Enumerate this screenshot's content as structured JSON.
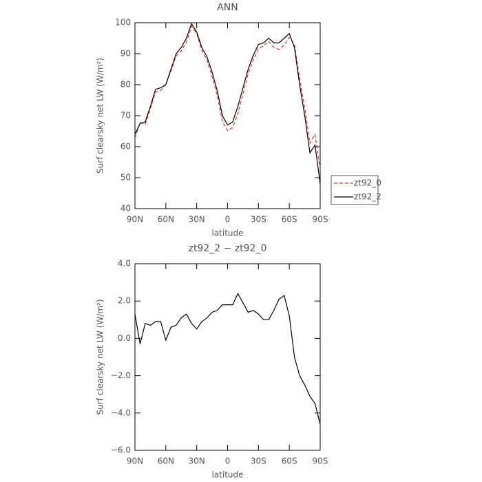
{
  "chart_data": [
    {
      "type": "line",
      "title": "ANN",
      "xlabel": "latitude",
      "ylabel": "Surf clearsky net LW (W/m²)",
      "x": [
        90,
        85,
        80,
        75,
        70,
        65,
        60,
        55,
        50,
        45,
        40,
        35,
        30,
        25,
        20,
        15,
        10,
        5,
        0,
        -5,
        -10,
        -15,
        -20,
        -25,
        -30,
        -35,
        -40,
        -45,
        -50,
        -55,
        -60,
        -65,
        -70,
        -75,
        -80,
        -85,
        -90
      ],
      "xlim": [
        90,
        -90
      ],
      "xticks": [
        {
          "value": 90,
          "label": "90N"
        },
        {
          "value": 60,
          "label": "60N"
        },
        {
          "value": 30,
          "label": "30N"
        },
        0,
        {
          "value": -30,
          "label": "30S"
        },
        {
          "value": -60,
          "label": "60S"
        },
        {
          "value": -90,
          "label": "90S"
        }
      ],
      "ylim": [
        40,
        100
      ],
      "yticks": [
        40,
        50,
        60,
        70,
        80,
        90,
        100
      ],
      "legend": "right",
      "series": [
        {
          "name": "zt92_0",
          "color": "#e8322a",
          "dashed": true,
          "values": [
            62.7,
            67.8,
            67.2,
            72.3,
            77.6,
            78.1,
            80.1,
            84.4,
            89.3,
            90.9,
            93.7,
            98.9,
            96.5,
            91.1,
            87.9,
            82.6,
            76.5,
            68.2,
            65.2,
            66.2,
            70.6,
            77.1,
            83.6,
            88,
            91.7,
            92.5,
            94,
            92,
            91.4,
            92.7,
            95.3,
            93,
            82,
            72.5,
            61.1,
            64,
            52.6
          ]
        },
        {
          "name": "zt92_2",
          "color": "#000000",
          "dashed": false,
          "values": [
            64,
            67.5,
            68,
            73,
            78.5,
            79,
            80,
            85,
            90,
            92,
            95,
            99.7,
            97,
            92,
            89,
            84,
            78,
            70,
            67,
            68,
            73,
            79,
            85,
            89.5,
            93,
            93.5,
            95,
            93.5,
            93.5,
            95,
            96.5,
            92,
            80,
            70,
            58,
            60.5,
            48
          ]
        }
      ]
    },
    {
      "type": "line",
      "title": "zt92_2 − zt92_0",
      "xlabel": "latitude",
      "ylabel": "Surf clearsky net LW (W/m²)",
      "x": [
        90,
        85,
        80,
        75,
        70,
        65,
        60,
        55,
        50,
        45,
        40,
        35,
        30,
        25,
        20,
        15,
        10,
        5,
        0,
        -5,
        -10,
        -15,
        -20,
        -25,
        -30,
        -35,
        -40,
        -45,
        -50,
        -55,
        -60,
        -65,
        -70,
        -75,
        -80,
        -85,
        -90
      ],
      "xlim": [
        90,
        -90
      ],
      "xticks": [
        {
          "value": 90,
          "label": "90N"
        },
        {
          "value": 60,
          "label": "60N"
        },
        {
          "value": 30,
          "label": "30N"
        },
        0,
        {
          "value": -30,
          "label": "30S"
        },
        {
          "value": -60,
          "label": "60S"
        },
        {
          "value": -90,
          "label": "90S"
        }
      ],
      "ylim": [
        -6,
        4
      ],
      "yticks": [
        {
          "value": -6,
          "label": "−6.0"
        },
        {
          "value": -4,
          "label": "−4.0"
        },
        {
          "value": -2,
          "label": "−2.0"
        },
        {
          "value": 0,
          "label": "0.0"
        },
        {
          "value": 2,
          "label": "2.0"
        },
        {
          "value": 4,
          "label": "4.0"
        }
      ],
      "series": [
        {
          "color": "#000000",
          "dashed": false,
          "values": [
            1.3,
            -0.3,
            0.8,
            0.7,
            0.9,
            0.9,
            -0.1,
            0.6,
            0.7,
            1.1,
            1.3,
            0.8,
            0.5,
            0.9,
            1.1,
            1.4,
            1.5,
            1.8,
            1.8,
            1.8,
            2.4,
            1.9,
            1.4,
            1.5,
            1.3,
            1,
            1,
            1.5,
            2.1,
            2.3,
            1.2,
            -1,
            -2,
            -2.5,
            -3.1,
            -3.5,
            -4.6
          ]
        }
      ]
    }
  ]
}
